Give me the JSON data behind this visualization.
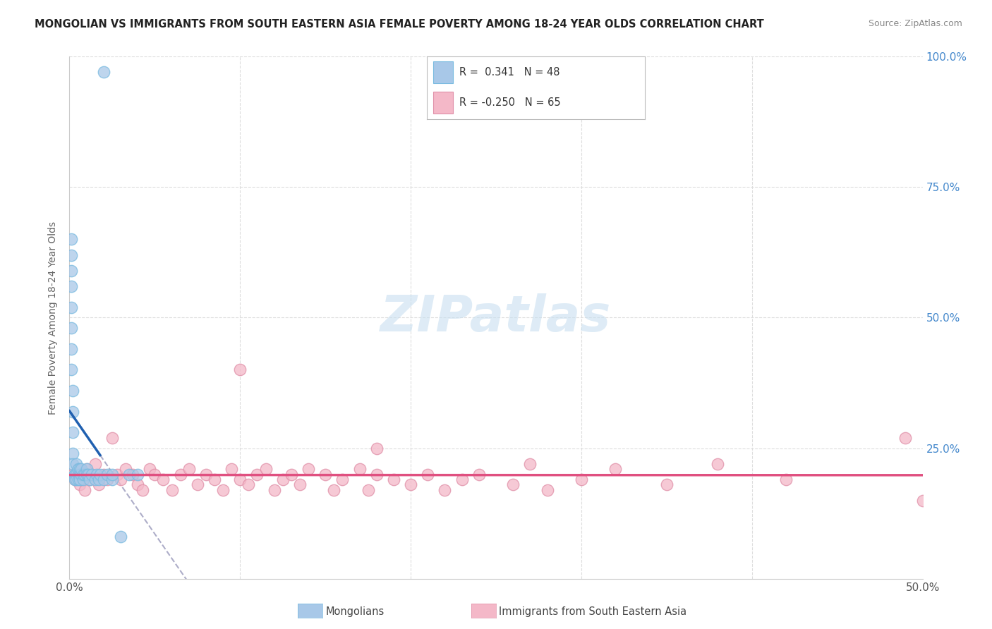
{
  "title": "MONGOLIAN VS IMMIGRANTS FROM SOUTH EASTERN ASIA FEMALE POVERTY AMONG 18-24 YEAR OLDS CORRELATION CHART",
  "source": "Source: ZipAtlas.com",
  "ylabel": "Female Poverty Among 18-24 Year Olds",
  "right_yticks": [
    "100.0%",
    "75.0%",
    "50.0%",
    "25.0%"
  ],
  "right_ytick_vals": [
    1.0,
    0.75,
    0.5,
    0.25
  ],
  "legend_mongolians": "Mongolians",
  "legend_immigrants": "Immigrants from South Eastern Asia",
  "r_mongolians": 0.341,
  "n_mongolians": 48,
  "r_immigrants": -0.25,
  "n_immigrants": 65,
  "color_mongolians": "#a8c8e8",
  "color_immigrants": "#f4b8c8",
  "color_trend_mongolians": "#2060b0",
  "color_trend_immigrants": "#e05080",
  "color_trend_dashed": "#9999bb",
  "watermark_color": "#c8dff0",
  "background_color": "#ffffff",
  "mongolians_x": [
    0.001,
    0.001,
    0.001,
    0.001,
    0.001,
    0.001,
    0.001,
    0.001,
    0.002,
    0.002,
    0.002,
    0.002,
    0.002,
    0.003,
    0.003,
    0.003,
    0.003,
    0.004,
    0.004,
    0.004,
    0.005,
    0.005,
    0.005,
    0.006,
    0.006,
    0.006,
    0.007,
    0.007,
    0.008,
    0.008,
    0.009,
    0.01,
    0.01,
    0.011,
    0.012,
    0.013,
    0.015,
    0.016,
    0.017,
    0.018,
    0.02,
    0.022,
    0.025,
    0.03,
    0.035,
    0.04,
    0.02,
    0.025
  ],
  "mongolians_y": [
    0.65,
    0.62,
    0.59,
    0.56,
    0.52,
    0.48,
    0.44,
    0.4,
    0.36,
    0.32,
    0.28,
    0.24,
    0.22,
    0.2,
    0.2,
    0.2,
    0.19,
    0.2,
    0.19,
    0.22,
    0.2,
    0.19,
    0.21,
    0.21,
    0.2,
    0.19,
    0.2,
    0.21,
    0.19,
    0.2,
    0.2,
    0.21,
    0.2,
    0.2,
    0.19,
    0.2,
    0.19,
    0.2,
    0.19,
    0.2,
    0.19,
    0.2,
    0.19,
    0.08,
    0.2,
    0.2,
    0.97,
    0.2
  ],
  "immigrants_x": [
    0.002,
    0.003,
    0.005,
    0.006,
    0.007,
    0.008,
    0.009,
    0.01,
    0.012,
    0.013,
    0.015,
    0.017,
    0.02,
    0.022,
    0.025,
    0.028,
    0.03,
    0.033,
    0.037,
    0.04,
    0.043,
    0.047,
    0.05,
    0.055,
    0.06,
    0.065,
    0.07,
    0.075,
    0.08,
    0.085,
    0.09,
    0.095,
    0.1,
    0.105,
    0.11,
    0.115,
    0.12,
    0.125,
    0.13,
    0.135,
    0.14,
    0.15,
    0.155,
    0.16,
    0.17,
    0.175,
    0.18,
    0.19,
    0.2,
    0.21,
    0.22,
    0.23,
    0.24,
    0.26,
    0.28,
    0.3,
    0.32,
    0.35,
    0.38,
    0.42,
    0.1,
    0.18,
    0.27,
    0.49,
    0.5
  ],
  "immigrants_y": [
    0.2,
    0.19,
    0.21,
    0.18,
    0.2,
    0.19,
    0.17,
    0.21,
    0.19,
    0.2,
    0.22,
    0.18,
    0.2,
    0.19,
    0.27,
    0.2,
    0.19,
    0.21,
    0.2,
    0.18,
    0.17,
    0.21,
    0.2,
    0.19,
    0.17,
    0.2,
    0.21,
    0.18,
    0.2,
    0.19,
    0.17,
    0.21,
    0.19,
    0.18,
    0.2,
    0.21,
    0.17,
    0.19,
    0.2,
    0.18,
    0.21,
    0.2,
    0.17,
    0.19,
    0.21,
    0.17,
    0.2,
    0.19,
    0.18,
    0.2,
    0.17,
    0.19,
    0.2,
    0.18,
    0.17,
    0.19,
    0.21,
    0.18,
    0.22,
    0.19,
    0.4,
    0.25,
    0.22,
    0.27,
    0.15
  ],
  "xlim": [
    0.0,
    0.5
  ],
  "ylim": [
    0.0,
    1.0
  ],
  "xtick_positions": [
    0.0,
    0.1,
    0.2,
    0.3,
    0.4,
    0.5
  ],
  "xtick_labels": [
    "0.0%",
    "",
    "",
    "",
    "",
    "50.0%"
  ]
}
